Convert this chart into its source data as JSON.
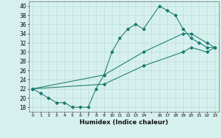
{
  "xlabel": "Humidex (Indice chaleur)",
  "bg_color": "#d6f0ee",
  "line_color": "#1a7a6e",
  "grid_color": "#b8ddd8",
  "xlim": [
    0,
    23
  ],
  "ylim": [
    17,
    41
  ],
  "yticks": [
    18,
    20,
    22,
    24,
    26,
    28,
    30,
    32,
    34,
    36,
    38,
    40
  ],
  "xtick_labels": [
    "0",
    "1",
    "2",
    "3",
    "4",
    "5",
    "6",
    "7",
    "8",
    "9",
    "10",
    "11",
    "12",
    "13",
    "14",
    "",
    "16",
    "17",
    "18",
    "19",
    "20",
    "21",
    "22",
    "23"
  ],
  "xtick_positions": [
    0,
    1,
    2,
    3,
    4,
    5,
    6,
    7,
    8,
    9,
    10,
    11,
    12,
    13,
    14,
    15,
    16,
    17,
    18,
    19,
    20,
    21,
    22,
    23
  ],
  "line1_x": [
    0,
    1,
    2,
    3,
    4,
    5,
    6,
    7,
    8,
    9,
    10,
    11,
    12,
    13,
    14,
    16,
    17,
    18,
    19,
    20,
    21,
    22,
    23
  ],
  "line1_y": [
    22,
    21,
    20,
    19,
    19,
    18,
    18,
    18,
    22,
    25,
    30,
    33,
    35,
    36,
    35,
    40,
    39,
    38,
    35,
    33,
    32,
    31,
    31
  ],
  "line2_x": [
    0,
    9,
    14,
    19,
    20,
    22,
    23
  ],
  "line2_y": [
    22,
    25,
    30,
    34,
    34,
    32,
    31
  ],
  "line3_x": [
    0,
    9,
    14,
    19,
    20,
    22,
    23
  ],
  "line3_y": [
    22,
    23,
    27,
    30,
    31,
    30,
    31
  ]
}
